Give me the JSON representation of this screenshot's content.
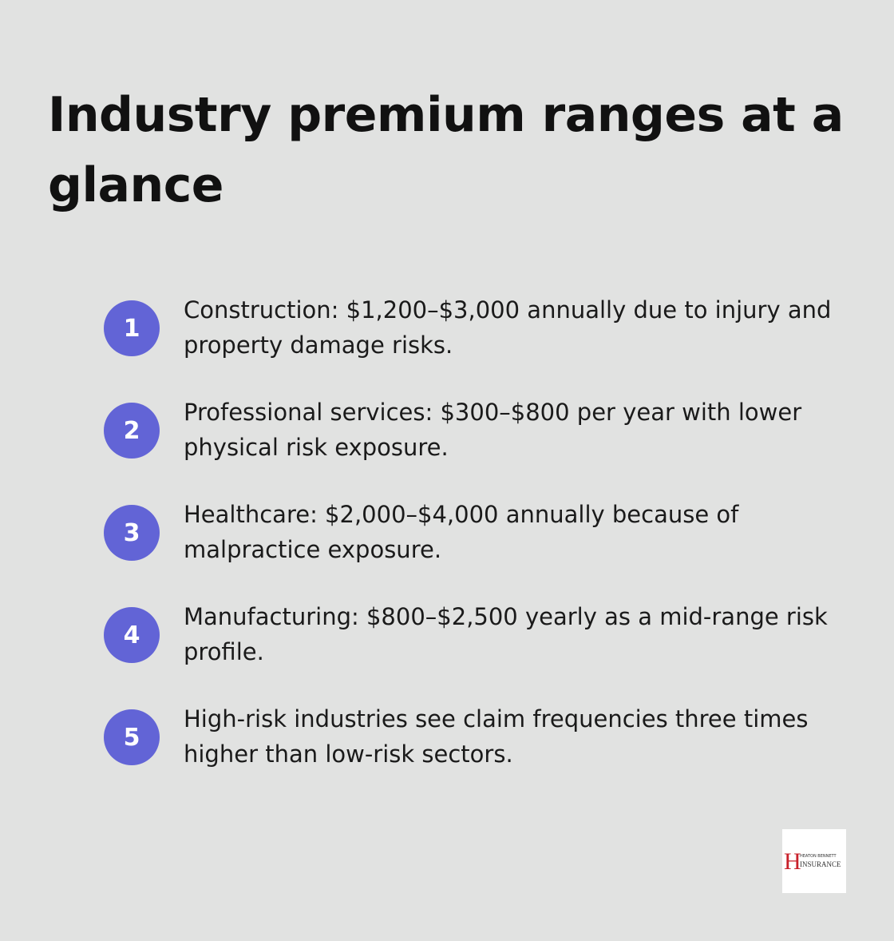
{
  "header": {
    "title": "Industry premium ranges at a glance"
  },
  "items": [
    {
      "number": "1",
      "text": "Construction: $1,200–$3,000 annually due to injury and property damage risks."
    },
    {
      "number": "2",
      "text": "Professional services: $300–$800 per year with lower physical risk exposure."
    },
    {
      "number": "3",
      "text": "Healthcare: $2,000–$4,000 annually because of malpractice exposure."
    },
    {
      "number": "4",
      "text": "Manufacturing: $800–$2,500 yearly as a mid-range risk profile."
    },
    {
      "number": "5",
      "text": "High-risk industries see claim frequencies three times higher than low-risk sectors."
    }
  ],
  "logo": {
    "letter": "H",
    "line1": "HEATON BENNETT",
    "line2": "INSURANCE"
  }
}
